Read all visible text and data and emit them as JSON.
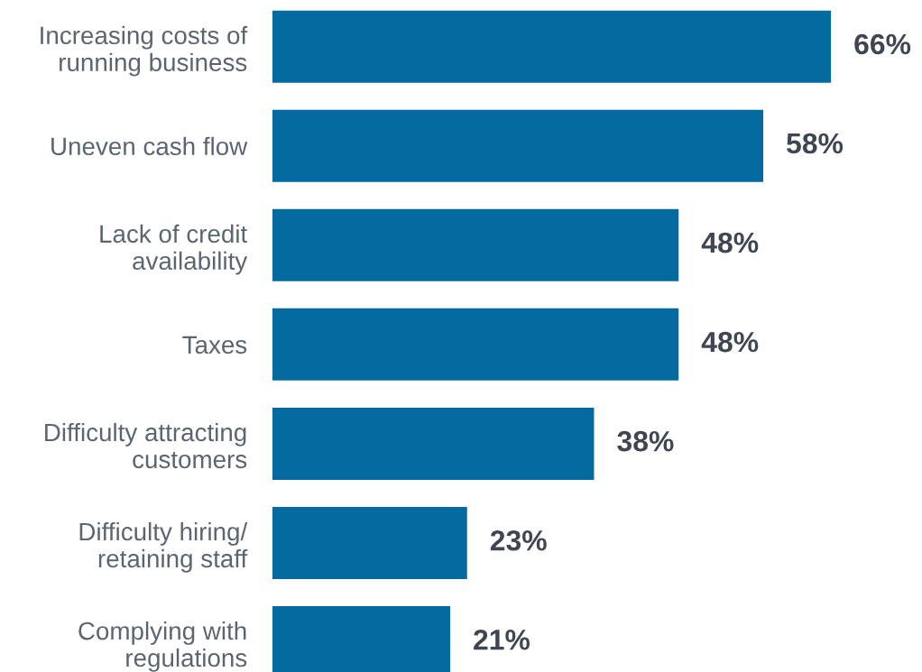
{
  "chart_data": {
    "type": "bar",
    "orientation": "horizontal",
    "categories": [
      "Increasing costs of\nrunning business",
      "Uneven cash flow",
      "Lack of credit\navailability",
      "Taxes",
      "Difficulty attracting\ncustomers",
      "Difficulty hiring/\nretaining staff",
      "Complying with\nregulations"
    ],
    "values": [
      66,
      58,
      48,
      48,
      38,
      23,
      21
    ],
    "value_labels": [
      "66%",
      "58%",
      "48%",
      "48%",
      "38%",
      "23%",
      "21%"
    ],
    "color": "#056a9f",
    "grid": false,
    "legend": false
  }
}
